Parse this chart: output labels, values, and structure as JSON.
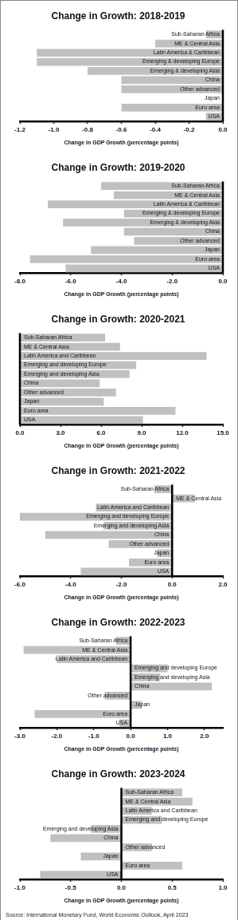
{
  "chart_data": [
    {
      "type": "bar",
      "orientation": "horizontal",
      "title": "Change in Growth: 2018-2019",
      "xlabel": "Change in GDP Growth (percentage points)",
      "color": "#c0c0c0",
      "categories": [
        "Sub-Saharan Africa",
        "ME & Central Asia",
        "Latin America & Caribbean",
        "Emerging & developing Europe",
        "Emerging & developing Asia",
        "China",
        "Other advanced",
        "Japan",
        "Euro area",
        "USA"
      ],
      "values": [
        -0.1,
        -0.4,
        -1.1,
        -1.1,
        -0.8,
        -0.6,
        -0.6,
        0,
        -0.6,
        -0.1
      ],
      "xlim": [
        -1.2,
        0
      ],
      "xticks": [
        {
          "value": -1.2,
          "label": "-1.2"
        },
        {
          "value": -1,
          "label": "-1.0"
        },
        {
          "value": -0.8,
          "label": "-0.8"
        },
        {
          "value": -0.6,
          "label": "-0.6"
        },
        {
          "value": -0.4,
          "label": "-0.4"
        },
        {
          "value": -0.2,
          "label": "-0.2"
        },
        {
          "value": 0,
          "label": "0.0"
        }
      ]
    },
    {
      "type": "bar",
      "orientation": "horizontal",
      "title": "Change in Growth: 2019-2020",
      "xlabel": "Change in GDP Growth (percentage points)",
      "color": "#c0c0c0",
      "categories": [
        "Sub-Saharan Africa",
        "ME & Central Asia",
        "Latin America & Caribbean",
        "Emerging & developing Europe",
        "Emerging & developing Asia",
        "China",
        "Other advanced",
        "Japan",
        "Euro area",
        "USA"
      ],
      "values": [
        -4.8,
        -4.3,
        -6.9,
        -3.9,
        -6.3,
        -3.9,
        -3.5,
        -5.2,
        -7.6,
        -6.2
      ],
      "xlim": [
        -8,
        0
      ],
      "xticks": [
        {
          "value": -8,
          "label": "-8.0"
        },
        {
          "value": -6,
          "label": "-6.0"
        },
        {
          "value": -4,
          "label": "-4.0"
        },
        {
          "value": -2,
          "label": "-2.0"
        },
        {
          "value": 0,
          "label": "0.0"
        }
      ]
    },
    {
      "type": "bar",
      "orientation": "horizontal",
      "title": "Change in Growth: 2020-2021",
      "xlabel": "Change in GDP Growth (percentage points)",
      "color": "#c0c0c0",
      "categories": [
        "Sub-Saharan Africa",
        "ME & Central Asia",
        "Latin America and Caribbean",
        "Emerging and developing Europe",
        "Emerging and developing Asia",
        "China",
        "Other advanced",
        "Japan",
        "Euro area",
        "USA"
      ],
      "values": [
        6.3,
        7.4,
        13.8,
        8.6,
        8.1,
        5.9,
        7.1,
        6.2,
        11.5,
        9.1
      ],
      "xlim": [
        0,
        15
      ],
      "xticks": [
        {
          "value": 0,
          "label": "0.0"
        },
        {
          "value": 3,
          "label": "3.0"
        },
        {
          "value": 6,
          "label": "6.0"
        },
        {
          "value": 9,
          "label": "9.0"
        },
        {
          "value": 12,
          "label": "12.0"
        },
        {
          "value": 15,
          "label": "15.0"
        }
      ]
    },
    {
      "type": "bar",
      "orientation": "horizontal",
      "title": "Change in Growth: 2021-2022",
      "xlabel": "Change in GDP Growth (percentage points)",
      "color": "#c0c0c0",
      "categories": [
        "Sub-Saharan Africa",
        "ME & Central Asia",
        "Latin America and Caribbean",
        "Emerging and developing Europe",
        "Emerging and developing Asia",
        "China",
        "Other advanced",
        "Japan",
        "Euro area",
        "USA"
      ],
      "values": [
        -0.7,
        0.9,
        -3.0,
        -6.0,
        -2.7,
        -5.0,
        -2.5,
        -0.6,
        -1.7,
        -3.6
      ],
      "xlim": [
        -6,
        2
      ],
      "xticks": [
        {
          "value": -6,
          "label": "-6.0"
        },
        {
          "value": -4,
          "label": "-4.0"
        },
        {
          "value": -2,
          "label": "-2.0"
        },
        {
          "value": 0,
          "label": "0.0"
        },
        {
          "value": 2,
          "label": "2.0"
        }
      ]
    },
    {
      "type": "bar",
      "orientation": "horizontal",
      "title": "Change in Growth: 2022-2023",
      "xlabel": "Change in GDP Growth (percentage points)",
      "color": "#c0c0c0",
      "categories": [
        "Sub-Saharan Africa",
        "ME & Central Asia",
        "Latin America and Caribbean",
        "Emerging and developing Europe",
        "Emerging and developing Asia",
        "China",
        "Other advanced",
        "Japan",
        "Euro area",
        "USA"
      ],
      "values": [
        -0.4,
        -2.9,
        -2.0,
        1.0,
        0.8,
        2.2,
        -0.7,
        0.3,
        -2.6,
        -0.3
      ],
      "xlim": [
        -3,
        2.5
      ],
      "xticks": [
        {
          "value": -3,
          "label": "-3.0"
        },
        {
          "value": -2,
          "label": "-2.0"
        },
        {
          "value": -1,
          "label": "-1.0"
        },
        {
          "value": 0,
          "label": "0.0"
        },
        {
          "value": 1,
          "label": "1.0"
        },
        {
          "value": 2,
          "label": "2.0"
        }
      ]
    },
    {
      "type": "bar",
      "orientation": "horizontal",
      "title": "Change in Growth: 2023-2024",
      "xlabel": "Change in GDP Growth (percentage points)",
      "color": "#c0c0c0",
      "categories": [
        "Sub-Saharan Africa",
        "ME & Central Asia",
        "Latin America and Caribbean",
        "Emerging and developing Europe",
        "Emerging and developing Asia",
        "China",
        "Other advanced",
        "Japan",
        "Euro area",
        "USA"
      ],
      "values": [
        0.6,
        0.7,
        0.3,
        0.4,
        -0.3,
        -0.7,
        0.3,
        -0.4,
        0.6,
        -0.8
      ],
      "xlim": [
        -1,
        1
      ],
      "xticks": [
        {
          "value": -1,
          "label": "-1.0"
        },
        {
          "value": -0.5,
          "label": "-0.5"
        },
        {
          "value": 0,
          "label": "0.0"
        },
        {
          "value": 0.5,
          "label": "0.5"
        },
        {
          "value": 1,
          "label": "1.0"
        }
      ],
      "annotations": [
        "Source: International Monetary Fund, World Economic Outlook, April 2023"
      ]
    }
  ]
}
